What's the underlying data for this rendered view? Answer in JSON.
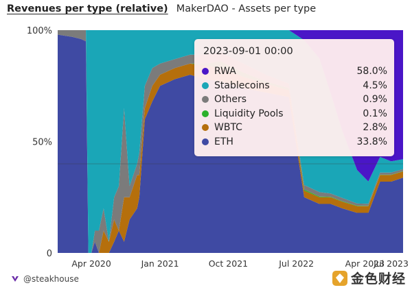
{
  "header": {
    "active_tab": "Revenues per type (relative)",
    "chart_title": "MakerDAO - Assets per type"
  },
  "footer": {
    "attribution": "@steakhouse",
    "logo_icon": "steakhouse-logo-icon"
  },
  "watermark": {
    "text": "金色财经",
    "icon": "jinse-logo-icon"
  },
  "tooltip": {
    "title": "2023-09-01 00:00",
    "rows": [
      {
        "label": "RWA",
        "value": "58.0%",
        "color": "#4a16c7"
      },
      {
        "label": "Stablecoins",
        "value": "4.5%",
        "color": "#1aa6b7"
      },
      {
        "label": "Others",
        "value": "0.9%",
        "color": "#7b7b7b"
      },
      {
        "label": "Liquidity Pools",
        "value": "0.1%",
        "color": "#2bb12b"
      },
      {
        "label": "WBTC",
        "value": "2.8%",
        "color": "#b56f0c"
      },
      {
        "label": "ETH",
        "value": "33.8%",
        "color": "#3f4aa3"
      }
    ]
  },
  "chart_data": {
    "type": "area",
    "stacked": true,
    "normalized": true,
    "x_type": "date",
    "xlim": [
      "2019-11-18",
      "2023-09-01"
    ],
    "ylim": [
      0,
      100
    ],
    "y_ticks": [
      {
        "value": 0,
        "label": "0"
      },
      {
        "value": 50,
        "label": "50%"
      },
      {
        "value": 100,
        "label": "100%"
      }
    ],
    "x_ticks": [
      {
        "value": "2020-04-01",
        "label": "Apr 2020"
      },
      {
        "value": "2021-01-01",
        "label": "Jan 2021"
      },
      {
        "value": "2021-10-01",
        "label": "Oct 2021"
      },
      {
        "value": "2022-07-01",
        "label": "Jul 2022"
      },
      {
        "value": "2023-04-01",
        "label": "Apr 2023"
      },
      {
        "value": "2023-07-15",
        "label": "Jul 2023"
      }
    ],
    "grid": false,
    "legend": "none",
    "crosshair_y": 40,
    "x": [
      "2019-11-18",
      "2020-01-15",
      "2020-02-20",
      "2020-03-10",
      "2020-03-20",
      "2020-04-01",
      "2020-04-15",
      "2020-05-01",
      "2020-05-20",
      "2020-06-10",
      "2020-07-01",
      "2020-07-20",
      "2020-08-10",
      "2020-09-01",
      "2020-10-01",
      "2020-10-10",
      "2020-11-01",
      "2020-12-01",
      "2021-01-01",
      "2021-03-01",
      "2021-05-01",
      "2021-07-01",
      "2021-09-01",
      "2021-12-01",
      "2022-03-01",
      "2022-06-01",
      "2022-08-01",
      "2022-10-01",
      "2022-11-15",
      "2023-01-01",
      "2023-03-01",
      "2023-04-15",
      "2023-06-01",
      "2023-07-15",
      "2023-09-01"
    ],
    "series": [
      {
        "name": "ETH",
        "color": "#3f4aa3",
        "values": [
          98,
          97,
          96,
          95,
          0,
          0,
          5,
          0,
          0,
          0,
          5,
          10,
          5,
          15,
          20,
          25,
          60,
          68,
          75,
          78,
          80,
          78,
          77,
          74,
          72,
          70,
          25,
          22,
          22,
          20,
          18,
          18,
          32,
          32,
          33.8
        ]
      },
      {
        "name": "WBTC",
        "color": "#b56f0c",
        "values": [
          0,
          0,
          0,
          0,
          0,
          0,
          0,
          0,
          10,
          5,
          10,
          0,
          20,
          10,
          15,
          10,
          5,
          7,
          5,
          5,
          5,
          6,
          6,
          5,
          4,
          3,
          3,
          3,
          3,
          3,
          3,
          3,
          3,
          3,
          2.8
        ]
      },
      {
        "name": "Liquidity Pools",
        "color": "#2bb12b",
        "values": [
          0,
          0,
          0,
          0,
          0,
          0,
          0,
          0,
          0,
          0,
          0,
          0,
          0,
          0,
          0,
          0,
          0,
          0,
          0,
          0,
          0,
          1,
          3,
          2,
          1,
          1,
          0.5,
          0.3,
          0.2,
          0.2,
          0.2,
          0.1,
          0.1,
          0.1,
          0.1
        ]
      },
      {
        "name": "Others",
        "color": "#7b7b7b",
        "values": [
          2,
          3,
          4,
          5,
          0,
          0,
          5,
          10,
          10,
          0,
          10,
          20,
          40,
          5,
          5,
          10,
          10,
          8,
          5,
          4,
          4,
          4,
          4,
          4,
          3,
          2,
          2,
          2,
          1.5,
          1.5,
          1,
          1,
          1,
          1,
          0.9
        ]
      },
      {
        "name": "Stablecoins",
        "color": "#1aa6b7",
        "values": [
          0,
          0,
          0,
          0,
          100,
          100,
          90,
          90,
          80,
          95,
          75,
          70,
          35,
          70,
          60,
          55,
          25,
          17,
          15,
          13,
          11,
          11,
          10,
          15,
          20,
          24,
          65,
          60,
          45,
          30,
          15,
          10,
          7,
          5,
          4.5
        ]
      },
      {
        "name": "RWA",
        "color": "#4a16c7",
        "values": [
          0,
          0,
          0,
          0,
          0,
          0,
          0,
          0,
          0,
          0,
          0,
          0,
          0,
          0,
          0,
          0,
          0,
          0,
          0,
          0,
          0,
          0,
          0,
          0,
          0,
          0,
          4.5,
          12.7,
          28.3,
          45.3,
          62.8,
          67.9,
          56.9,
          58.9,
          58.0
        ]
      }
    ]
  }
}
